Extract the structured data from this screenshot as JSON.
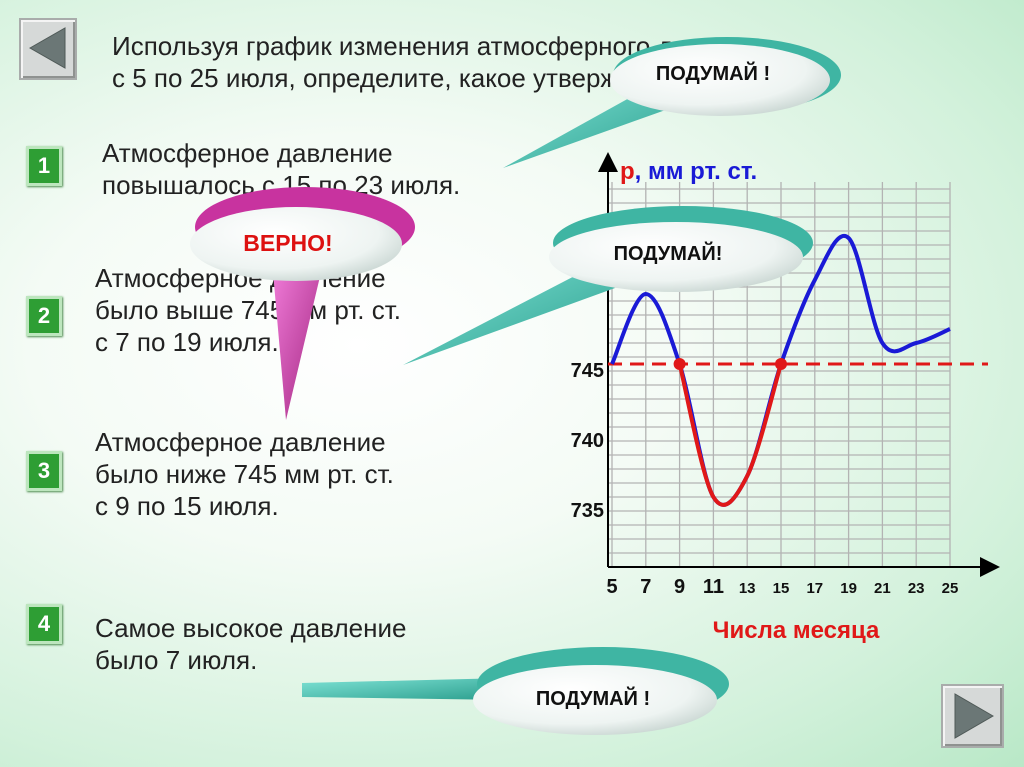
{
  "question": {
    "line1": "Используя график изменения атмосферного давления",
    "line2": "с 5 по 25 июля, определите, какое утверждение верно."
  },
  "options": [
    {
      "number": "1",
      "line1": "Атмосферное давление",
      "line2": "повышалось с 15 по 23 июля.",
      "line3": ""
    },
    {
      "number": "2",
      "line1": "Атмосферное давление",
      "line2": "было выше 745 мм рт. ст.",
      "line3": "с 7 по 19 июля."
    },
    {
      "number": "3",
      "line1": "Атмосферное давление",
      "line2": "было ниже 745 мм рт. ст.",
      "line3": "с 9 по 15 июля."
    },
    {
      "number": "4",
      "line1": "Самое высокое давление",
      "line2": "было 7 июля.",
      "line3": ""
    }
  ],
  "bubbles": {
    "think_1": "ПОДУМАЙ !",
    "think_2": "ПОДУМАЙ!",
    "think_3": "ПОДУМАЙ !",
    "correct": "ВЕРНО!"
  },
  "icons": {
    "prev": "left-arrow-icon",
    "next": "right-arrow-icon"
  },
  "chart_data": {
    "type": "line",
    "ylabel_p": "p",
    "ylabel_rest": ", мм рт. ст.",
    "xlabel": "Числа месяца",
    "x_ticks": [
      5,
      7,
      9,
      11,
      13,
      15,
      17,
      19,
      21,
      23,
      25
    ],
    "y_ticks": [
      735,
      740,
      745,
      750,
      755
    ],
    "y_visible_labels": [
      "735",
      "740",
      "745"
    ],
    "x": [
      5,
      7,
      9,
      11,
      13,
      15,
      17,
      19,
      21,
      23,
      25
    ],
    "y": [
      745,
      750,
      745,
      735.5,
      737,
      745,
      751,
      754,
      746.5,
      746.5,
      747.5
    ],
    "reference_line": 745,
    "highlight_range": [
      9,
      15
    ],
    "highlight_points": [
      9,
      15
    ],
    "colors": {
      "curve": "#1a1ad6",
      "highlight": "#e01818",
      "reference": "#e01818",
      "ylabel_p": "#e01818",
      "ylabel_rest": "#1a1ad6",
      "xlabel": "#e01818"
    }
  }
}
